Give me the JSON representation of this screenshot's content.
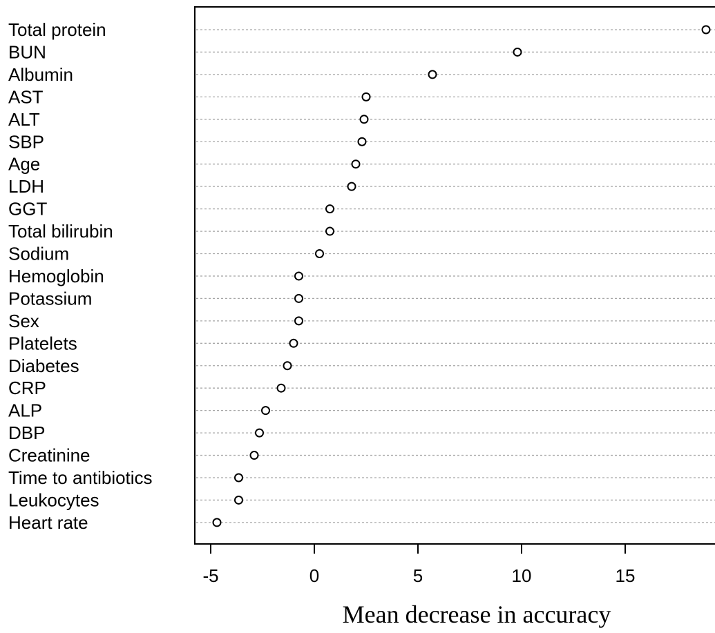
{
  "chart_data": {
    "type": "dot",
    "categories": [
      "Total protein",
      "BUN",
      "Albumin",
      "AST",
      "ALT",
      "SBP",
      "Age",
      "LDH",
      "GGT",
      "Total bilirubin",
      "Sodium",
      "Hemoglobin",
      "Potassium",
      "Sex",
      "Platelets",
      "Diabetes",
      "CRP",
      "ALP",
      "DBP",
      "Creatinine",
      "Time to antibiotics",
      "Leukocytes",
      "Heart rate"
    ],
    "values": [
      18.9,
      9.8,
      5.7,
      2.5,
      2.4,
      2.3,
      2.0,
      1.8,
      0.75,
      0.75,
      0.25,
      -0.75,
      -0.75,
      -0.75,
      -1.0,
      -1.3,
      -1.6,
      -2.35,
      -2.65,
      -2.9,
      -3.65,
      -3.65,
      -4.7
    ],
    "xlabel": "Mean decrease in accuracy",
    "xticks": [
      "-5",
      "0",
      "5",
      "10",
      "15"
    ],
    "xlim": [
      -5.5,
      19.5
    ],
    "grid": "dotted horizontal guide per row",
    "marker": "open circle",
    "colors": {
      "points": "#000000",
      "guides": "#a6a6a6"
    }
  }
}
